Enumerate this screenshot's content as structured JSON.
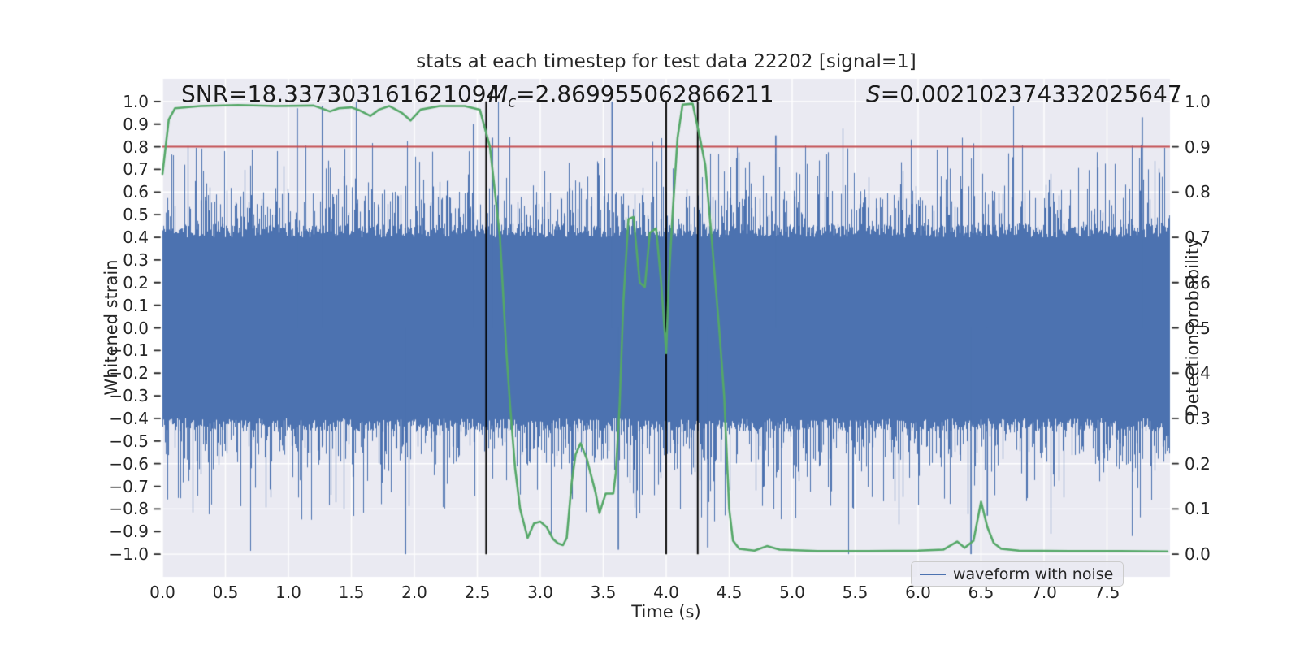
{
  "figure": {
    "title": "stats at each timestep for test data 22202 [signal=1]"
  },
  "annotations": {
    "snr": {
      "text": "SNR=18.337303161621094"
    },
    "mc": {
      "var": "M",
      "sub": "c",
      "value": "=2.869955062866211"
    },
    "s": {
      "var": "S",
      "value": "=0.002102374332025647"
    }
  },
  "axes": {
    "xlabel": "Time (s)",
    "ylabel_left": "Whitened strain",
    "ylabel_right": "Detection probability"
  },
  "legend": {
    "label": "waveform with noise"
  },
  "chart_data": {
    "type": "line",
    "title": "stats at each timestep for test data 22202 [signal=1]",
    "xlabel": "Time (s)",
    "ylabel_left": "Whitened strain",
    "ylabel_right": "Detection probability",
    "xlim": [
      0,
      8
    ],
    "ylim_left": [
      -1.1,
      1.1
    ],
    "ylim_right": [
      -0.05,
      1.05
    ],
    "grid": true,
    "background_color": "#eaeaf2",
    "grid_color": "#ffffff",
    "x_ticks": {
      "values": [
        0,
        0.5,
        1,
        1.5,
        2,
        2.5,
        3,
        3.5,
        4,
        4.5,
        5,
        5.5,
        6,
        6.5,
        7,
        7.5
      ],
      "labels": [
        "0.0",
        "0.5",
        "1.0",
        "1.5",
        "2.0",
        "2.5",
        "3.0",
        "3.5",
        "4.0",
        "4.5",
        "5.0",
        "5.5",
        "6.0",
        "6.5",
        "7.0",
        "7.5"
      ]
    },
    "left_ticks": {
      "values": [
        1.0,
        0.9,
        0.8,
        0.7,
        0.6,
        0.5,
        0.4,
        0.3,
        0.2,
        0.1,
        0.0,
        -0.1,
        -0.2,
        -0.3,
        -0.4,
        -0.5,
        -0.6,
        -0.7,
        -0.8,
        -0.9,
        -1.0
      ],
      "labels": [
        "1.0",
        "0.9",
        "0.8",
        "0.7",
        "0.6",
        "0.5",
        "0.4",
        "0.3",
        "0.2",
        "0.1",
        "0.0",
        "−0.1",
        "−0.2",
        "−0.3",
        "−0.4",
        "−0.5",
        "−0.6",
        "−0.7",
        "−0.8",
        "−0.9",
        "−1.0"
      ]
    },
    "right_ticks": {
      "values": [
        1.0,
        0.9,
        0.8,
        0.7,
        0.6,
        0.5,
        0.4,
        0.3,
        0.2,
        0.1,
        0.0
      ],
      "labels": [
        "1.0",
        "0.9",
        "0.8",
        "0.7",
        "0.6",
        "0.5",
        "0.4",
        "0.3",
        "0.2",
        "0.1",
        "0.0"
      ]
    },
    "threshold_line": {
      "axis": "right",
      "value": 0.9,
      "color": "#c44e52",
      "linewidth": 2
    },
    "event_lines": {
      "x": [
        2.57,
        4.0,
        4.25
      ],
      "ymin": -1.0,
      "ymax": 1.0,
      "color": "#000000",
      "linewidth": 1.9
    },
    "series": [
      {
        "name": "waveform with noise",
        "kind": "noise_envelope",
        "axis": "left",
        "color": "#4c72b0",
        "columns": 1240,
        "seed": 11,
        "base_amplitude": 0.4,
        "jitter": 0.06,
        "spike_tiers": [
          {
            "cum_prob": 0.006,
            "min": 0.34,
            "max": 0.62
          },
          {
            "cum_prob": 0.1,
            "min": 0.18,
            "max": 0.4
          },
          {
            "cum_prob": 0.4,
            "min": 0.04,
            "max": 0.18
          }
        ],
        "featured_spikes": [
          [
            1.07,
            0.97
          ],
          [
            1.27,
            0.98
          ],
          [
            1.93,
            -1.0
          ],
          [
            2.47,
            0.9
          ],
          [
            2.62,
            0.84
          ],
          [
            3.57,
            1.0
          ],
          [
            3.62,
            -0.98
          ],
          [
            4.33,
            -0.97
          ],
          [
            4.87,
            0.85
          ],
          [
            6.42,
            -1.0
          ],
          [
            6.55,
            -0.83
          ],
          [
            7.78,
            0.93
          ]
        ]
      },
      {
        "name": "detection probability",
        "kind": "line",
        "axis": "right",
        "color": "#55a868",
        "linewidth": 2.6,
        "points": [
          [
            0.0,
            0.84
          ],
          [
            0.05,
            0.96
          ],
          [
            0.1,
            0.985
          ],
          [
            0.3,
            0.99
          ],
          [
            0.6,
            0.992
          ],
          [
            0.9,
            0.99
          ],
          [
            1.2,
            0.991
          ],
          [
            1.33,
            0.978
          ],
          [
            1.4,
            0.985
          ],
          [
            1.5,
            0.987
          ],
          [
            1.56,
            0.981
          ],
          [
            1.65,
            0.968
          ],
          [
            1.72,
            0.982
          ],
          [
            1.8,
            0.99
          ],
          [
            1.9,
            0.975
          ],
          [
            1.97,
            0.958
          ],
          [
            2.05,
            0.982
          ],
          [
            2.2,
            0.99
          ],
          [
            2.4,
            0.99
          ],
          [
            2.52,
            0.982
          ],
          [
            2.6,
            0.9
          ],
          [
            2.68,
            0.7
          ],
          [
            2.73,
            0.45
          ],
          [
            2.76,
            0.33
          ],
          [
            2.8,
            0.19
          ],
          [
            2.84,
            0.1
          ],
          [
            2.87,
            0.068
          ],
          [
            2.9,
            0.036
          ],
          [
            2.95,
            0.068
          ],
          [
            3.0,
            0.072
          ],
          [
            3.05,
            0.06
          ],
          [
            3.1,
            0.034
          ],
          [
            3.14,
            0.024
          ],
          [
            3.18,
            0.02
          ],
          [
            3.21,
            0.036
          ],
          [
            3.25,
            0.16
          ],
          [
            3.28,
            0.22
          ],
          [
            3.32,
            0.245
          ],
          [
            3.37,
            0.21
          ],
          [
            3.44,
            0.135
          ],
          [
            3.47,
            0.091
          ],
          [
            3.52,
            0.134
          ],
          [
            3.58,
            0.134
          ],
          [
            3.6,
            0.18
          ],
          [
            3.63,
            0.33
          ],
          [
            3.66,
            0.56
          ],
          [
            3.7,
            0.74
          ],
          [
            3.74,
            0.745
          ],
          [
            3.79,
            0.6
          ],
          [
            3.83,
            0.59
          ],
          [
            3.87,
            0.71
          ],
          [
            3.92,
            0.72
          ],
          [
            3.96,
            0.6
          ],
          [
            4.0,
            0.444
          ],
          [
            4.02,
            0.6
          ],
          [
            4.05,
            0.75
          ],
          [
            4.09,
            0.92
          ],
          [
            4.13,
            0.993
          ],
          [
            4.21,
            0.995
          ],
          [
            4.26,
            0.93
          ],
          [
            4.31,
            0.86
          ],
          [
            4.36,
            0.7
          ],
          [
            4.42,
            0.5
          ],
          [
            4.46,
            0.35
          ],
          [
            4.5,
            0.1
          ],
          [
            4.53,
            0.03
          ],
          [
            4.58,
            0.012
          ],
          [
            4.7,
            0.008
          ],
          [
            4.8,
            0.018
          ],
          [
            4.9,
            0.01
          ],
          [
            5.2,
            0.007
          ],
          [
            5.6,
            0.007
          ],
          [
            6.0,
            0.008
          ],
          [
            6.2,
            0.01
          ],
          [
            6.31,
            0.028
          ],
          [
            6.37,
            0.014
          ],
          [
            6.44,
            0.03
          ],
          [
            6.5,
            0.116
          ],
          [
            6.55,
            0.06
          ],
          [
            6.6,
            0.025
          ],
          [
            6.66,
            0.012
          ],
          [
            6.8,
            0.008
          ],
          [
            7.2,
            0.007
          ],
          [
            7.6,
            0.007
          ],
          [
            7.98,
            0.006
          ]
        ]
      }
    ],
    "legend": {
      "entries": [
        "waveform with noise"
      ],
      "location": "lower right"
    }
  }
}
